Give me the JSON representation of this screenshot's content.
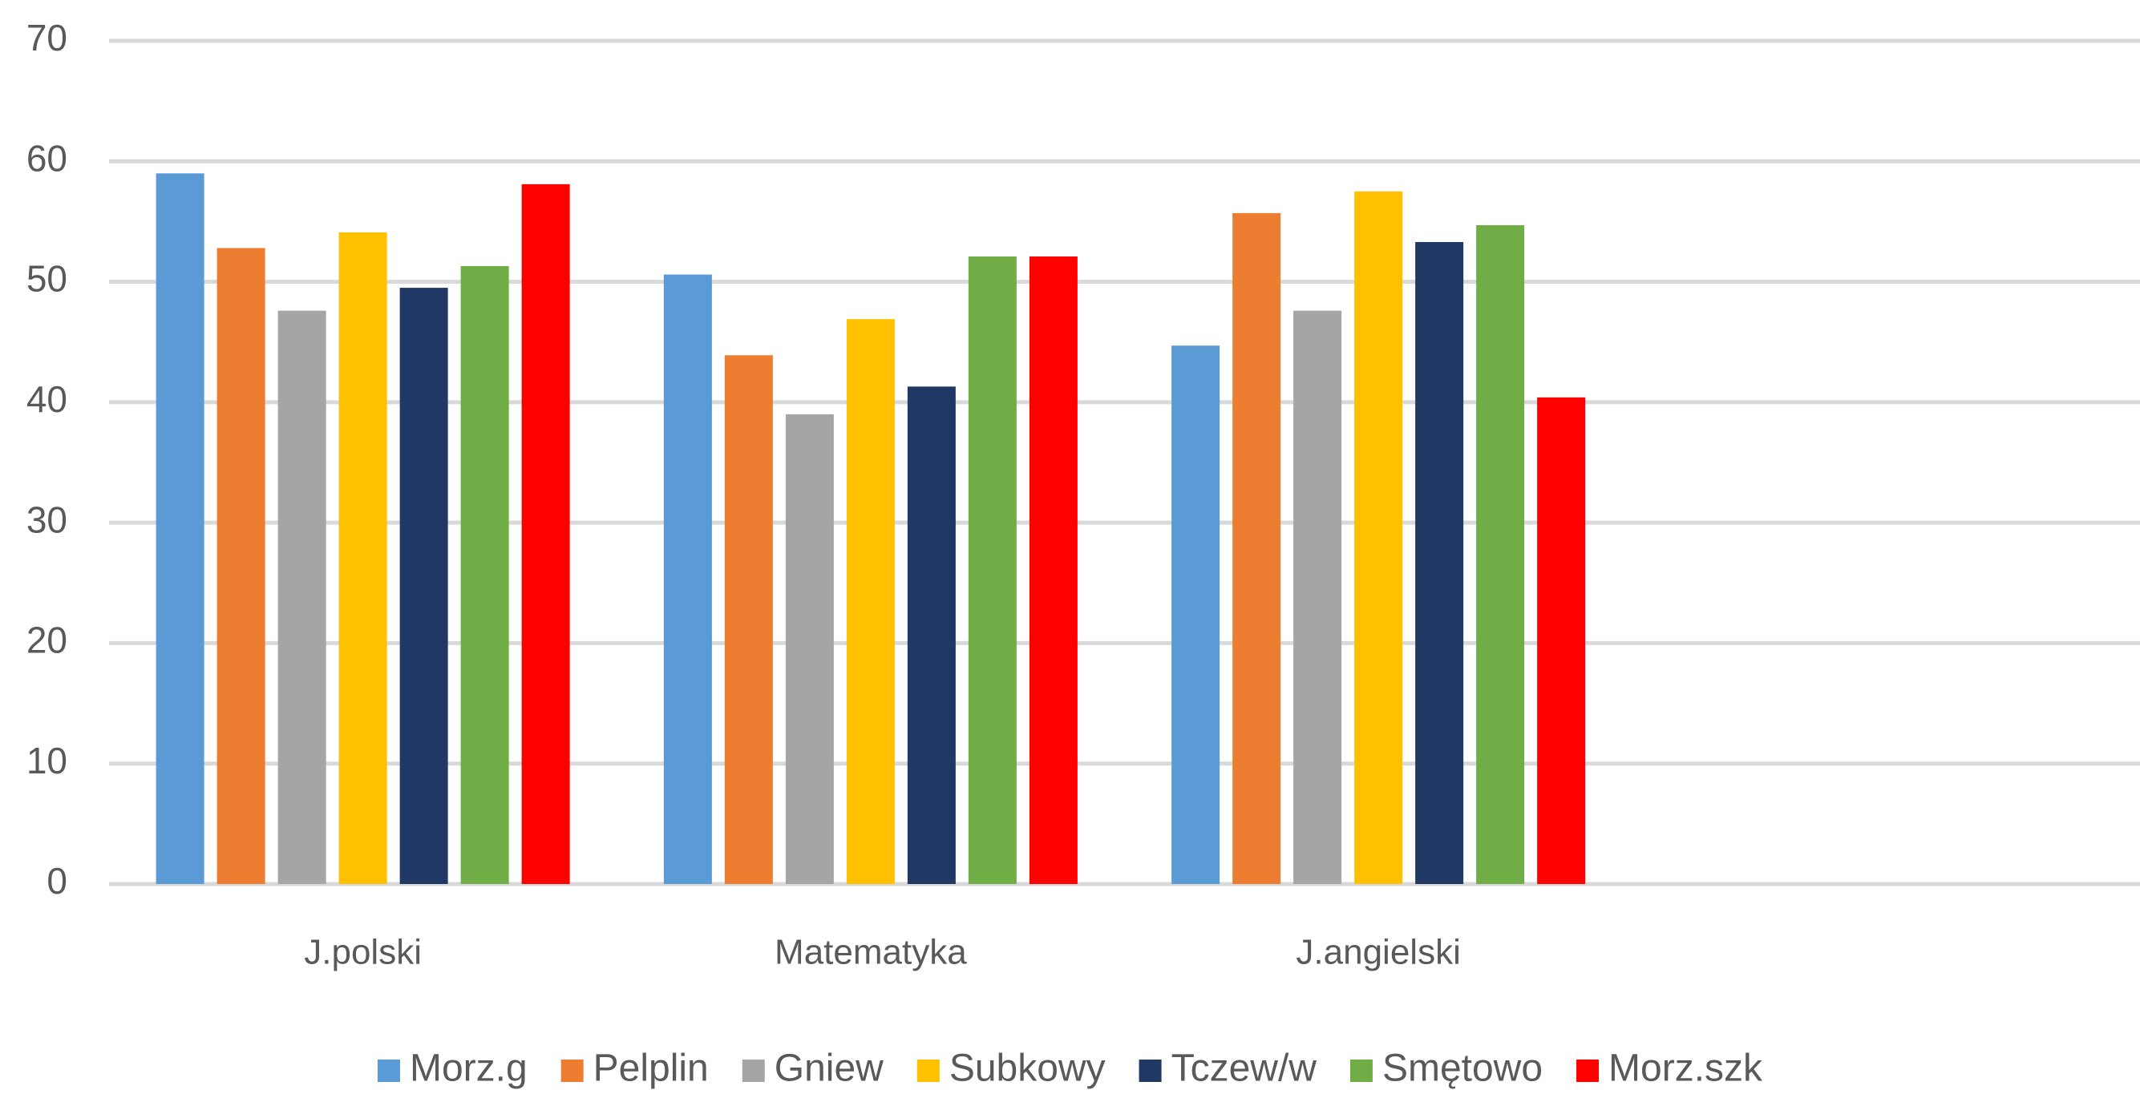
{
  "chart_data": {
    "type": "bar",
    "categories": [
      "J.polski",
      "Matematyka",
      "J.angielski",
      null
    ],
    "series": [
      {
        "name": "Morz.g",
        "color": "#5b9bd5",
        "values": [
          59.0,
          50.6,
          44.7,
          null
        ]
      },
      {
        "name": "Pelplin",
        "color": "#ed7d31",
        "values": [
          52.8,
          43.9,
          55.7,
          null
        ]
      },
      {
        "name": "Gniew",
        "color": "#a5a5a5",
        "values": [
          47.6,
          39.0,
          47.6,
          null
        ]
      },
      {
        "name": "Subkowy",
        "color": "#ffc000",
        "values": [
          54.1,
          46.9,
          57.5,
          null
        ]
      },
      {
        "name": "Tczew/w",
        "color": "#203864",
        "values": [
          49.5,
          41.3,
          53.3,
          null
        ]
      },
      {
        "name": "Smętowo",
        "color": "#70ad47",
        "values": [
          51.3,
          52.1,
          54.7,
          null
        ]
      },
      {
        "name": "Morz.szk",
        "color": "#ff0000",
        "values": [
          58.1,
          52.1,
          40.4,
          null
        ]
      }
    ],
    "ylim": [
      0,
      70
    ],
    "yticks": [
      0,
      10,
      20,
      30,
      40,
      50,
      60,
      70
    ],
    "grid": true,
    "legend": "bottom"
  }
}
